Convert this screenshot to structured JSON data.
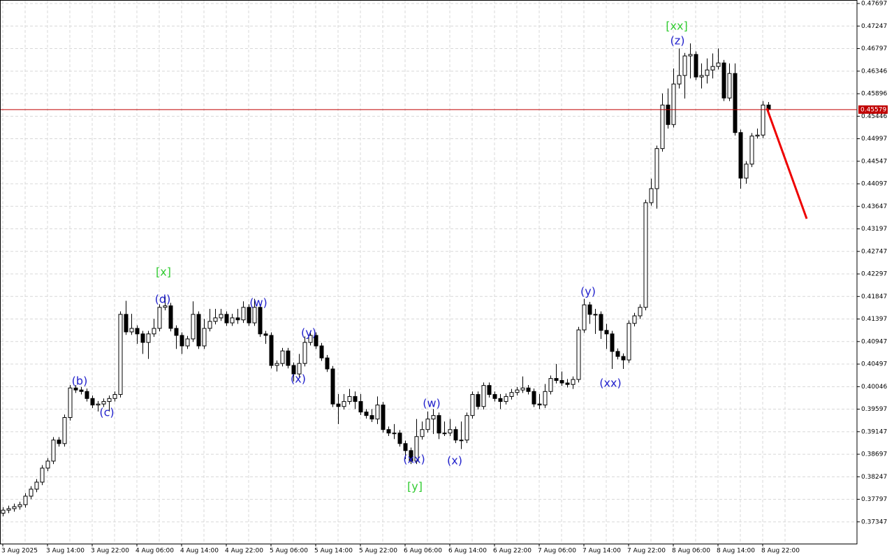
{
  "chart_data": {
    "type": "candlestick",
    "open": [
      0.3752,
      0.3758,
      0.3761,
      0.3765,
      0.3769,
      0.3786,
      0.38,
      0.3814,
      0.3842,
      0.3856,
      0.3898,
      0.3891,
      0.3943,
      0.4002,
      0.3998,
      0.3995,
      0.3981,
      0.3968,
      0.397,
      0.3975,
      0.3981,
      0.3989,
      0.4149,
      0.4114,
      0.4121,
      0.411,
      0.4093,
      0.411,
      0.4121,
      0.4163,
      0.4166,
      0.4121,
      0.4107,
      0.4086,
      0.41,
      0.4149,
      0.4086,
      0.4121,
      0.4135,
      0.4142,
      0.4149,
      0.4132,
      0.4142,
      0.4138,
      0.4163,
      0.4132,
      0.4163,
      0.411,
      0.4107,
      0.4047,
      0.4051,
      0.4076,
      0.4047,
      0.403,
      0.4051,
      0.4093,
      0.4107,
      0.4086,
      0.4062,
      0.404,
      0.397,
      0.3965,
      0.3975,
      0.3985,
      0.3975,
      0.3954,
      0.3947,
      0.394,
      0.3968,
      0.3919,
      0.3912,
      0.3912,
      0.3891,
      0.3877,
      0.3856,
      0.3905,
      0.3919,
      0.394,
      0.3947,
      0.3912,
      0.3912,
      0.3919,
      0.3898,
      0.3898,
      0.3947,
      0.3989,
      0.3965,
      0.4007,
      0.3989,
      0.3981,
      0.3975,
      0.3985,
      0.3993,
      0.3998,
      0.4002,
      0.3995,
      0.397,
      0.3968,
      0.3995,
      0.4021,
      0.4017,
      0.4012,
      0.4009,
      0.4019,
      0.4118,
      0.4168,
      0.4149,
      0.4149,
      0.4117,
      0.411,
      0.4075,
      0.4065,
      0.4058,
      0.4131,
      0.4146,
      0.4163,
      0.4372,
      0.44,
      0.448,
      0.4567,
      0.4528,
      0.4609,
      0.4626,
      0.4665,
      0.4668,
      0.4623,
      0.4626,
      0.4637,
      0.4644,
      0.4651,
      0.4581,
      0.463,
      0.4512,
      0.4421,
      0.4449,
      0.4505,
      0.4507,
      0.4567
    ],
    "high": [
      0.3764,
      0.3767,
      0.3771,
      0.3775,
      0.3792,
      0.3806,
      0.382,
      0.3848,
      0.3862,
      0.3904,
      0.3904,
      0.3949,
      0.4008,
      0.4008,
      0.4004,
      0.4001,
      0.3987,
      0.3976,
      0.3981,
      0.3987,
      0.3995,
      0.4155,
      0.4176,
      0.415,
      0.4127,
      0.4116,
      0.4116,
      0.414,
      0.4169,
      0.4185,
      0.4172,
      0.4127,
      0.4113,
      0.4106,
      0.4175,
      0.4155,
      0.414,
      0.416,
      0.416,
      0.416,
      0.4155,
      0.415,
      0.416,
      0.4175,
      0.4169,
      0.418,
      0.4169,
      0.4116,
      0.4113,
      0.4057,
      0.4082,
      0.4082,
      0.4053,
      0.407,
      0.4105,
      0.4113,
      0.4113,
      0.4092,
      0.4068,
      0.4046,
      0.399,
      0.399,
      0.4,
      0.3995,
      0.399,
      0.396,
      0.396,
      0.3985,
      0.3974,
      0.3925,
      0.393,
      0.3918,
      0.3897,
      0.3883,
      0.394,
      0.3935,
      0.3955,
      0.396,
      0.3953,
      0.3935,
      0.394,
      0.3925,
      0.3935,
      0.3953,
      0.3995,
      0.3995,
      0.4013,
      0.4013,
      0.3995,
      0.399,
      0.3991,
      0.4,
      0.4004,
      0.4025,
      0.4008,
      0.4001,
      0.399,
      0.401,
      0.4027,
      0.405,
      0.4035,
      0.402,
      0.4025,
      0.4124,
      0.418,
      0.4174,
      0.416,
      0.4155,
      0.413,
      0.4116,
      0.4081,
      0.4071,
      0.4137,
      0.4152,
      0.4169,
      0.4378,
      0.442,
      0.4486,
      0.459,
      0.46,
      0.464,
      0.468,
      0.4671,
      0.469,
      0.4674,
      0.465,
      0.466,
      0.467,
      0.468,
      0.4657,
      0.465,
      0.465,
      0.4518,
      0.4455,
      0.4511,
      0.452,
      0.4575,
      0.4573
    ],
    "low": [
      0.3746,
      0.3752,
      0.3755,
      0.3759,
      0.3763,
      0.378,
      0.3794,
      0.3808,
      0.3836,
      0.385,
      0.3885,
      0.3885,
      0.3937,
      0.3992,
      0.3989,
      0.3975,
      0.3962,
      0.3955,
      0.3964,
      0.3955,
      0.3975,
      0.3983,
      0.4108,
      0.4108,
      0.409,
      0.407,
      0.406,
      0.4104,
      0.4115,
      0.4157,
      0.4115,
      0.408,
      0.407,
      0.408,
      0.4094,
      0.408,
      0.408,
      0.4115,
      0.4129,
      0.4136,
      0.4126,
      0.4126,
      0.413,
      0.4132,
      0.4126,
      0.4126,
      0.4104,
      0.409,
      0.4041,
      0.4035,
      0.4045,
      0.4041,
      0.4015,
      0.4024,
      0.4045,
      0.4087,
      0.408,
      0.4056,
      0.4034,
      0.3964,
      0.393,
      0.3959,
      0.3969,
      0.396,
      0.3948,
      0.3941,
      0.3934,
      0.393,
      0.3913,
      0.3906,
      0.39,
      0.3885,
      0.386,
      0.385,
      0.385,
      0.3899,
      0.3913,
      0.391,
      0.39,
      0.3906,
      0.3906,
      0.3892,
      0.388,
      0.3892,
      0.3941,
      0.3959,
      0.3959,
      0.3983,
      0.3975,
      0.396,
      0.3969,
      0.3979,
      0.3987,
      0.3992,
      0.3989,
      0.3964,
      0.396,
      0.3962,
      0.3989,
      0.4011,
      0.4006,
      0.4003,
      0.4,
      0.4013,
      0.4112,
      0.413,
      0.411,
      0.41,
      0.408,
      0.404,
      0.4059,
      0.404,
      0.4052,
      0.4125,
      0.414,
      0.4157,
      0.4366,
      0.436,
      0.4474,
      0.452,
      0.4522,
      0.46,
      0.458,
      0.462,
      0.4617,
      0.46,
      0.461,
      0.462,
      0.4638,
      0.4575,
      0.4575,
      0.4506,
      0.44,
      0.441,
      0.4443,
      0.45,
      0.4501,
      0.4552
    ],
    "close": [
      0.3758,
      0.3761,
      0.3765,
      0.3769,
      0.3786,
      0.38,
      0.3814,
      0.3842,
      0.3856,
      0.3898,
      0.3891,
      0.3943,
      0.4002,
      0.3998,
      0.3995,
      0.3981,
      0.3968,
      0.397,
      0.3975,
      0.3981,
      0.3989,
      0.4149,
      0.4114,
      0.4121,
      0.411,
      0.4093,
      0.411,
      0.4121,
      0.4163,
      0.4166,
      0.4121,
      0.4107,
      0.4086,
      0.41,
      0.4149,
      0.4086,
      0.4121,
      0.4135,
      0.4142,
      0.4149,
      0.4132,
      0.4142,
      0.4138,
      0.4163,
      0.4132,
      0.4163,
      0.411,
      0.4107,
      0.4047,
      0.4051,
      0.4076,
      0.4047,
      0.403,
      0.4051,
      0.4093,
      0.4107,
      0.4086,
      0.4062,
      0.404,
      0.397,
      0.3965,
      0.3975,
      0.3985,
      0.3975,
      0.3954,
      0.3947,
      0.394,
      0.3968,
      0.3919,
      0.3912,
      0.3912,
      0.3891,
      0.3877,
      0.3856,
      0.3905,
      0.3919,
      0.394,
      0.3947,
      0.3912,
      0.3912,
      0.3919,
      0.3898,
      0.3898,
      0.3947,
      0.3989,
      0.3965,
      0.4007,
      0.3989,
      0.3981,
      0.3975,
      0.3985,
      0.3993,
      0.3998,
      0.4002,
      0.3995,
      0.397,
      0.3968,
      0.3995,
      0.4021,
      0.4017,
      0.4012,
      0.4009,
      0.4019,
      0.4118,
      0.4168,
      0.4149,
      0.4149,
      0.4117,
      0.411,
      0.4075,
      0.4065,
      0.4058,
      0.4131,
      0.4146,
      0.4163,
      0.4372,
      0.44,
      0.448,
      0.4567,
      0.4528,
      0.4609,
      0.4626,
      0.4665,
      0.4668,
      0.4623,
      0.4626,
      0.4637,
      0.4644,
      0.4651,
      0.4581,
      0.463,
      0.4512,
      0.4421,
      0.4449,
      0.4505,
      0.4507,
      0.4567,
      0.4558
    ],
    "up_color": "#ffffff",
    "down_color": "#000000",
    "current_price": 0.45579,
    "current_price_color": "#c00000",
    "x_labels": [
      "3 Aug 2025",
      "3 Aug 14:00",
      "3 Aug 22:00",
      "4 Aug 06:00",
      "4 Aug 14:00",
      "4 Aug 22:00",
      "5 Aug 06:00",
      "5 Aug 14:00",
      "5 Aug 22:00",
      "6 Aug 06:00",
      "6 Aug 14:00",
      "6 Aug 22:00",
      "7 Aug 06:00",
      "7 Aug 14:00",
      "7 Aug 22:00",
      "8 Aug 06:00",
      "8 Aug 14:00",
      "8 Aug 22:00"
    ],
    "ylim": [
      0.36912,
      0.47767
    ],
    "yticks": [
      0.47697,
      0.47247,
      0.46797,
      0.46346,
      0.45896,
      0.45446,
      0.44997,
      0.44547,
      0.44097,
      0.43647,
      0.43197,
      0.42747,
      0.42297,
      0.41847,
      0.41397,
      0.40947,
      0.40497,
      0.40046,
      0.39597,
      0.39147,
      0.38697,
      0.38247,
      0.37797,
      0.37347
    ],
    "grid": true,
    "annotations": [
      {
        "text": "[xx]",
        "color": "#33cc33"
      },
      {
        "text": "(z)",
        "color": "#2222cc"
      },
      {
        "text": "[x]",
        "color": "#33cc33"
      },
      {
        "text": "(d)",
        "color": "#2222cc"
      },
      {
        "text": "(w)",
        "color": "#2222cc"
      },
      {
        "text": "(b)",
        "color": "#2222cc"
      },
      {
        "text": "(c)",
        "color": "#2222cc"
      },
      {
        "text": "(y)",
        "color": "#2222cc"
      },
      {
        "text": "(x)",
        "color": "#2222cc"
      },
      {
        "text": "(xx)",
        "color": "#2222cc"
      },
      {
        "text": "[y]",
        "color": "#33cc33"
      },
      {
        "text": "(w)",
        "color": "#2222cc"
      },
      {
        "text": "(x)",
        "color": "#2222cc"
      },
      {
        "text": "(y)",
        "color": "#2222cc"
      },
      {
        "text": "(xx)",
        "color": "#2222cc"
      }
    ]
  }
}
